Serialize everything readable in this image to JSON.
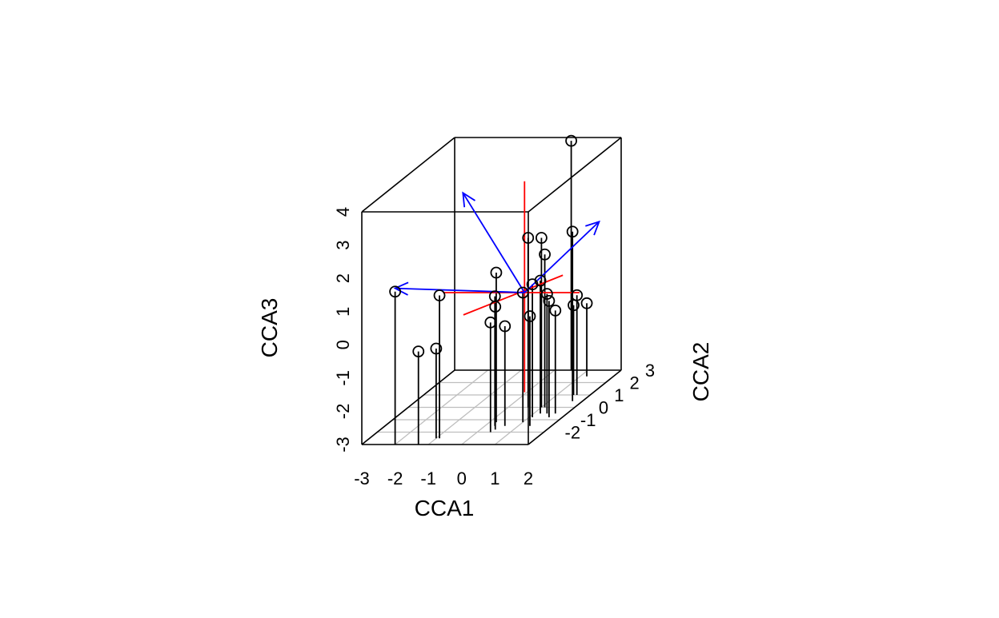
{
  "chart_data": {
    "type": "scatter",
    "subtype": "3d-scatter-with-drop-lines",
    "xlabel": "CCA1",
    "ylabel": "CCA2",
    "zlabel": "CCA3",
    "xlim": [
      -3,
      2
    ],
    "ylim": [
      -3,
      3
    ],
    "zlim": [
      -3,
      4
    ],
    "x_ticks": [
      "-3",
      "-2",
      "-1",
      "0",
      "1",
      "2"
    ],
    "y_ticks": [
      "-2",
      "-1",
      "0",
      "1",
      "2",
      "3"
    ],
    "z_ticks": [
      "-3",
      "-2",
      "-1",
      "0",
      "1",
      "2",
      "3",
      "4"
    ],
    "grid": "floor",
    "points": [
      {
        "x": -2.0,
        "y": -3.0,
        "z": 1.6
      },
      {
        "x": -1.3,
        "y": -3.0,
        "z": -0.2
      },
      {
        "x": -0.9,
        "y": -2.5,
        "z": 1.3
      },
      {
        "x": -1.0,
        "y": -2.5,
        "z": -0.3
      },
      {
        "x": 0.2,
        "y": -1.2,
        "z": 1.5
      },
      {
        "x": 0.3,
        "y": -1.5,
        "z": 0.9
      },
      {
        "x": 0.45,
        "y": -1.8,
        "z": 0.7
      },
      {
        "x": 0.4,
        "y": -2.0,
        "z": 0.3
      },
      {
        "x": 0.6,
        "y": -1.5,
        "z": 0.0
      },
      {
        "x": 0.6,
        "y": 0.0,
        "z": 2.1
      },
      {
        "x": 1.0,
        "y": 0.0,
        "z": 2.1
      },
      {
        "x": 1.1,
        "y": 0.0,
        "z": 1.6
      },
      {
        "x": 1.2,
        "y": -0.5,
        "z": 1.0
      },
      {
        "x": 1.1,
        "y": -0.8,
        "z": 1.0
      },
      {
        "x": 1.0,
        "y": -1.2,
        "z": 0.9
      },
      {
        "x": 1.4,
        "y": -0.5,
        "z": 0.6
      },
      {
        "x": 1.35,
        "y": -1.5,
        "z": 0.3
      },
      {
        "x": 1.6,
        "y": -0.8,
        "z": 0.5
      },
      {
        "x": 1.7,
        "y": 0.5,
        "z": 2.1
      },
      {
        "x": 1.65,
        "y": -0.5,
        "z": 0.1
      },
      {
        "x": 1.6,
        "y": 1.0,
        "z": 0.0
      },
      {
        "x": 1.5,
        "y": 1.0,
        "z": -0.3
      },
      {
        "x": 1.2,
        "y": 2.5,
        "z": -0.8
      },
      {
        "x": 0.5,
        "y": 3.0,
        "z": 3.9
      }
    ],
    "centroid": {
      "x": 1.05,
      "y": -1.2,
      "z": 0.9
    },
    "vectors": [
      {
        "to": {
          "x": -2.0,
          "y": -3.0,
          "z": 1.7
        }
      },
      {
        "to": {
          "x": -0.8,
          "y": -1.2,
          "z": 3.9
        }
      },
      {
        "to": {
          "x": 2.5,
          "y": 0.5,
          "z": 2.4
        }
      }
    ],
    "colors": {
      "points": "#000000",
      "box": "#000000",
      "grid": "#bebebe",
      "vectors": "#0000ff",
      "center_cross": "#ff0000"
    }
  }
}
